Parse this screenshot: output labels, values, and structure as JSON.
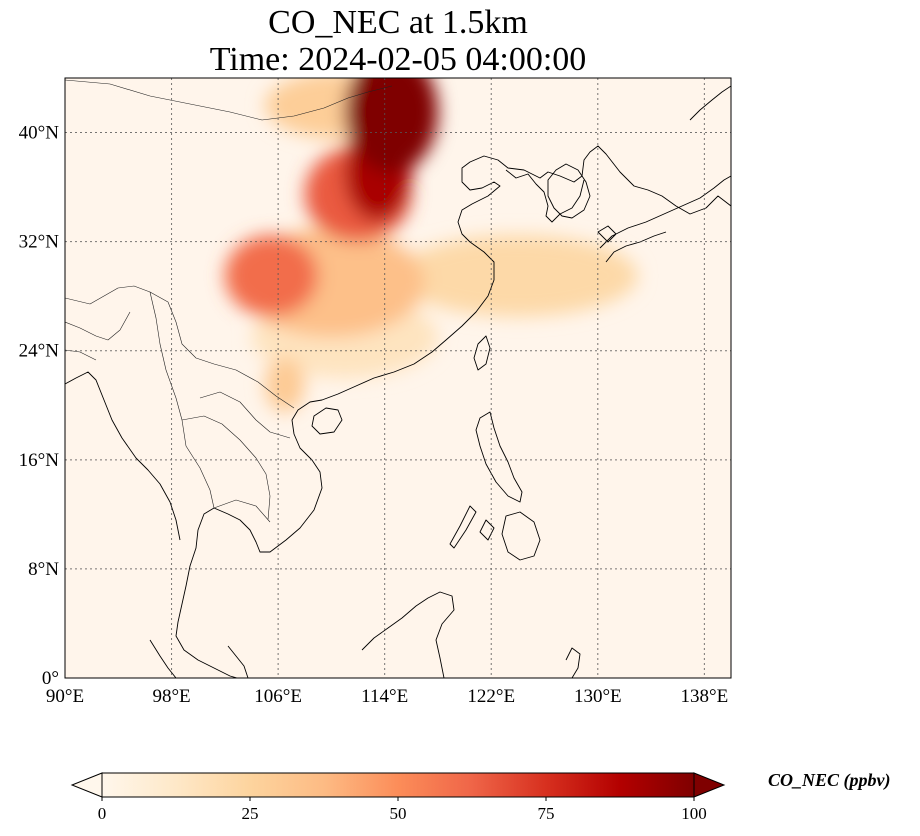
{
  "title": {
    "line1": "CO_NEC at 1.5km",
    "line2": "Time: 2024-02-05 04:00:00"
  },
  "map": {
    "projection": "PlateCarree",
    "lon_range": [
      90,
      140
    ],
    "lat_range": [
      0,
      44
    ],
    "gridlines": "dotted",
    "coastlines": true,
    "borders": true,
    "lon_ticks": [
      {
        "value": 90,
        "label": "90°E"
      },
      {
        "value": 98,
        "label": "98°E"
      },
      {
        "value": 106,
        "label": "106°E"
      },
      {
        "value": 114,
        "label": "114°E"
      },
      {
        "value": 122,
        "label": "122°E"
      },
      {
        "value": 130,
        "label": "130°E"
      },
      {
        "value": 138,
        "label": "138°E"
      }
    ],
    "lat_ticks": [
      {
        "value": 0,
        "label": "0°"
      },
      {
        "value": 8,
        "label": "8°N"
      },
      {
        "value": 16,
        "label": "16°N"
      },
      {
        "value": 24,
        "label": "24°N"
      },
      {
        "value": 32,
        "label": "32°N"
      },
      {
        "value": 40,
        "label": "40°N"
      }
    ],
    "background_color": "#fff5eb",
    "plumes": [
      {
        "desc": "dense plume north China",
        "lon": 114.5,
        "lat": 41.5,
        "rlon": 3.5,
        "rlat": 4.5,
        "value": 100
      },
      {
        "desc": "plume core",
        "lon": 113.5,
        "lat": 37.0,
        "rlon": 2.5,
        "rlat": 3.5,
        "value": 90
      },
      {
        "desc": "plume tail",
        "lon": 112.0,
        "lat": 35.5,
        "rlon": 4.0,
        "rlat": 3.5,
        "value": 65
      },
      {
        "desc": "Sichuan basin",
        "lon": 105.5,
        "lat": 29.5,
        "rlon": 3.5,
        "rlat": 3.0,
        "value": 60
      },
      {
        "desc": "central China",
        "lon": 110.0,
        "lat": 29.0,
        "rlon": 7.0,
        "rlat": 4.0,
        "value": 35
      },
      {
        "desc": "Yangtze outflow",
        "lon": 124.0,
        "lat": 29.5,
        "rlon": 9.0,
        "rlat": 3.0,
        "value": 22
      },
      {
        "desc": "south China",
        "lon": 111.0,
        "lat": 25.0,
        "rlon": 7.0,
        "rlat": 3.0,
        "value": 15
      },
      {
        "desc": "north of plume",
        "lon": 111.0,
        "lat": 42.0,
        "rlon": 6.0,
        "rlat": 2.5,
        "value": 28
      },
      {
        "desc": "Gulf of Tonkin",
        "lon": 106.5,
        "lat": 21.5,
        "rlon": 1.5,
        "rlat": 2.0,
        "value": 30
      }
    ]
  },
  "colorbar": {
    "label": "CO_NEC (ppbv)",
    "min": 0,
    "max": 100,
    "extend": "both",
    "cmap": "OrRd",
    "ticks": [
      {
        "value": 0,
        "label": "0"
      },
      {
        "value": 25,
        "label": "25"
      },
      {
        "value": 50,
        "label": "50"
      },
      {
        "value": 75,
        "label": "75"
      },
      {
        "value": 100,
        "label": "100"
      }
    ],
    "colors": [
      "#fff7ec",
      "#fee8c8",
      "#fdd49e",
      "#fdbb84",
      "#fc8d59",
      "#ef6548",
      "#d7301f",
      "#b30000",
      "#7f0000"
    ]
  }
}
